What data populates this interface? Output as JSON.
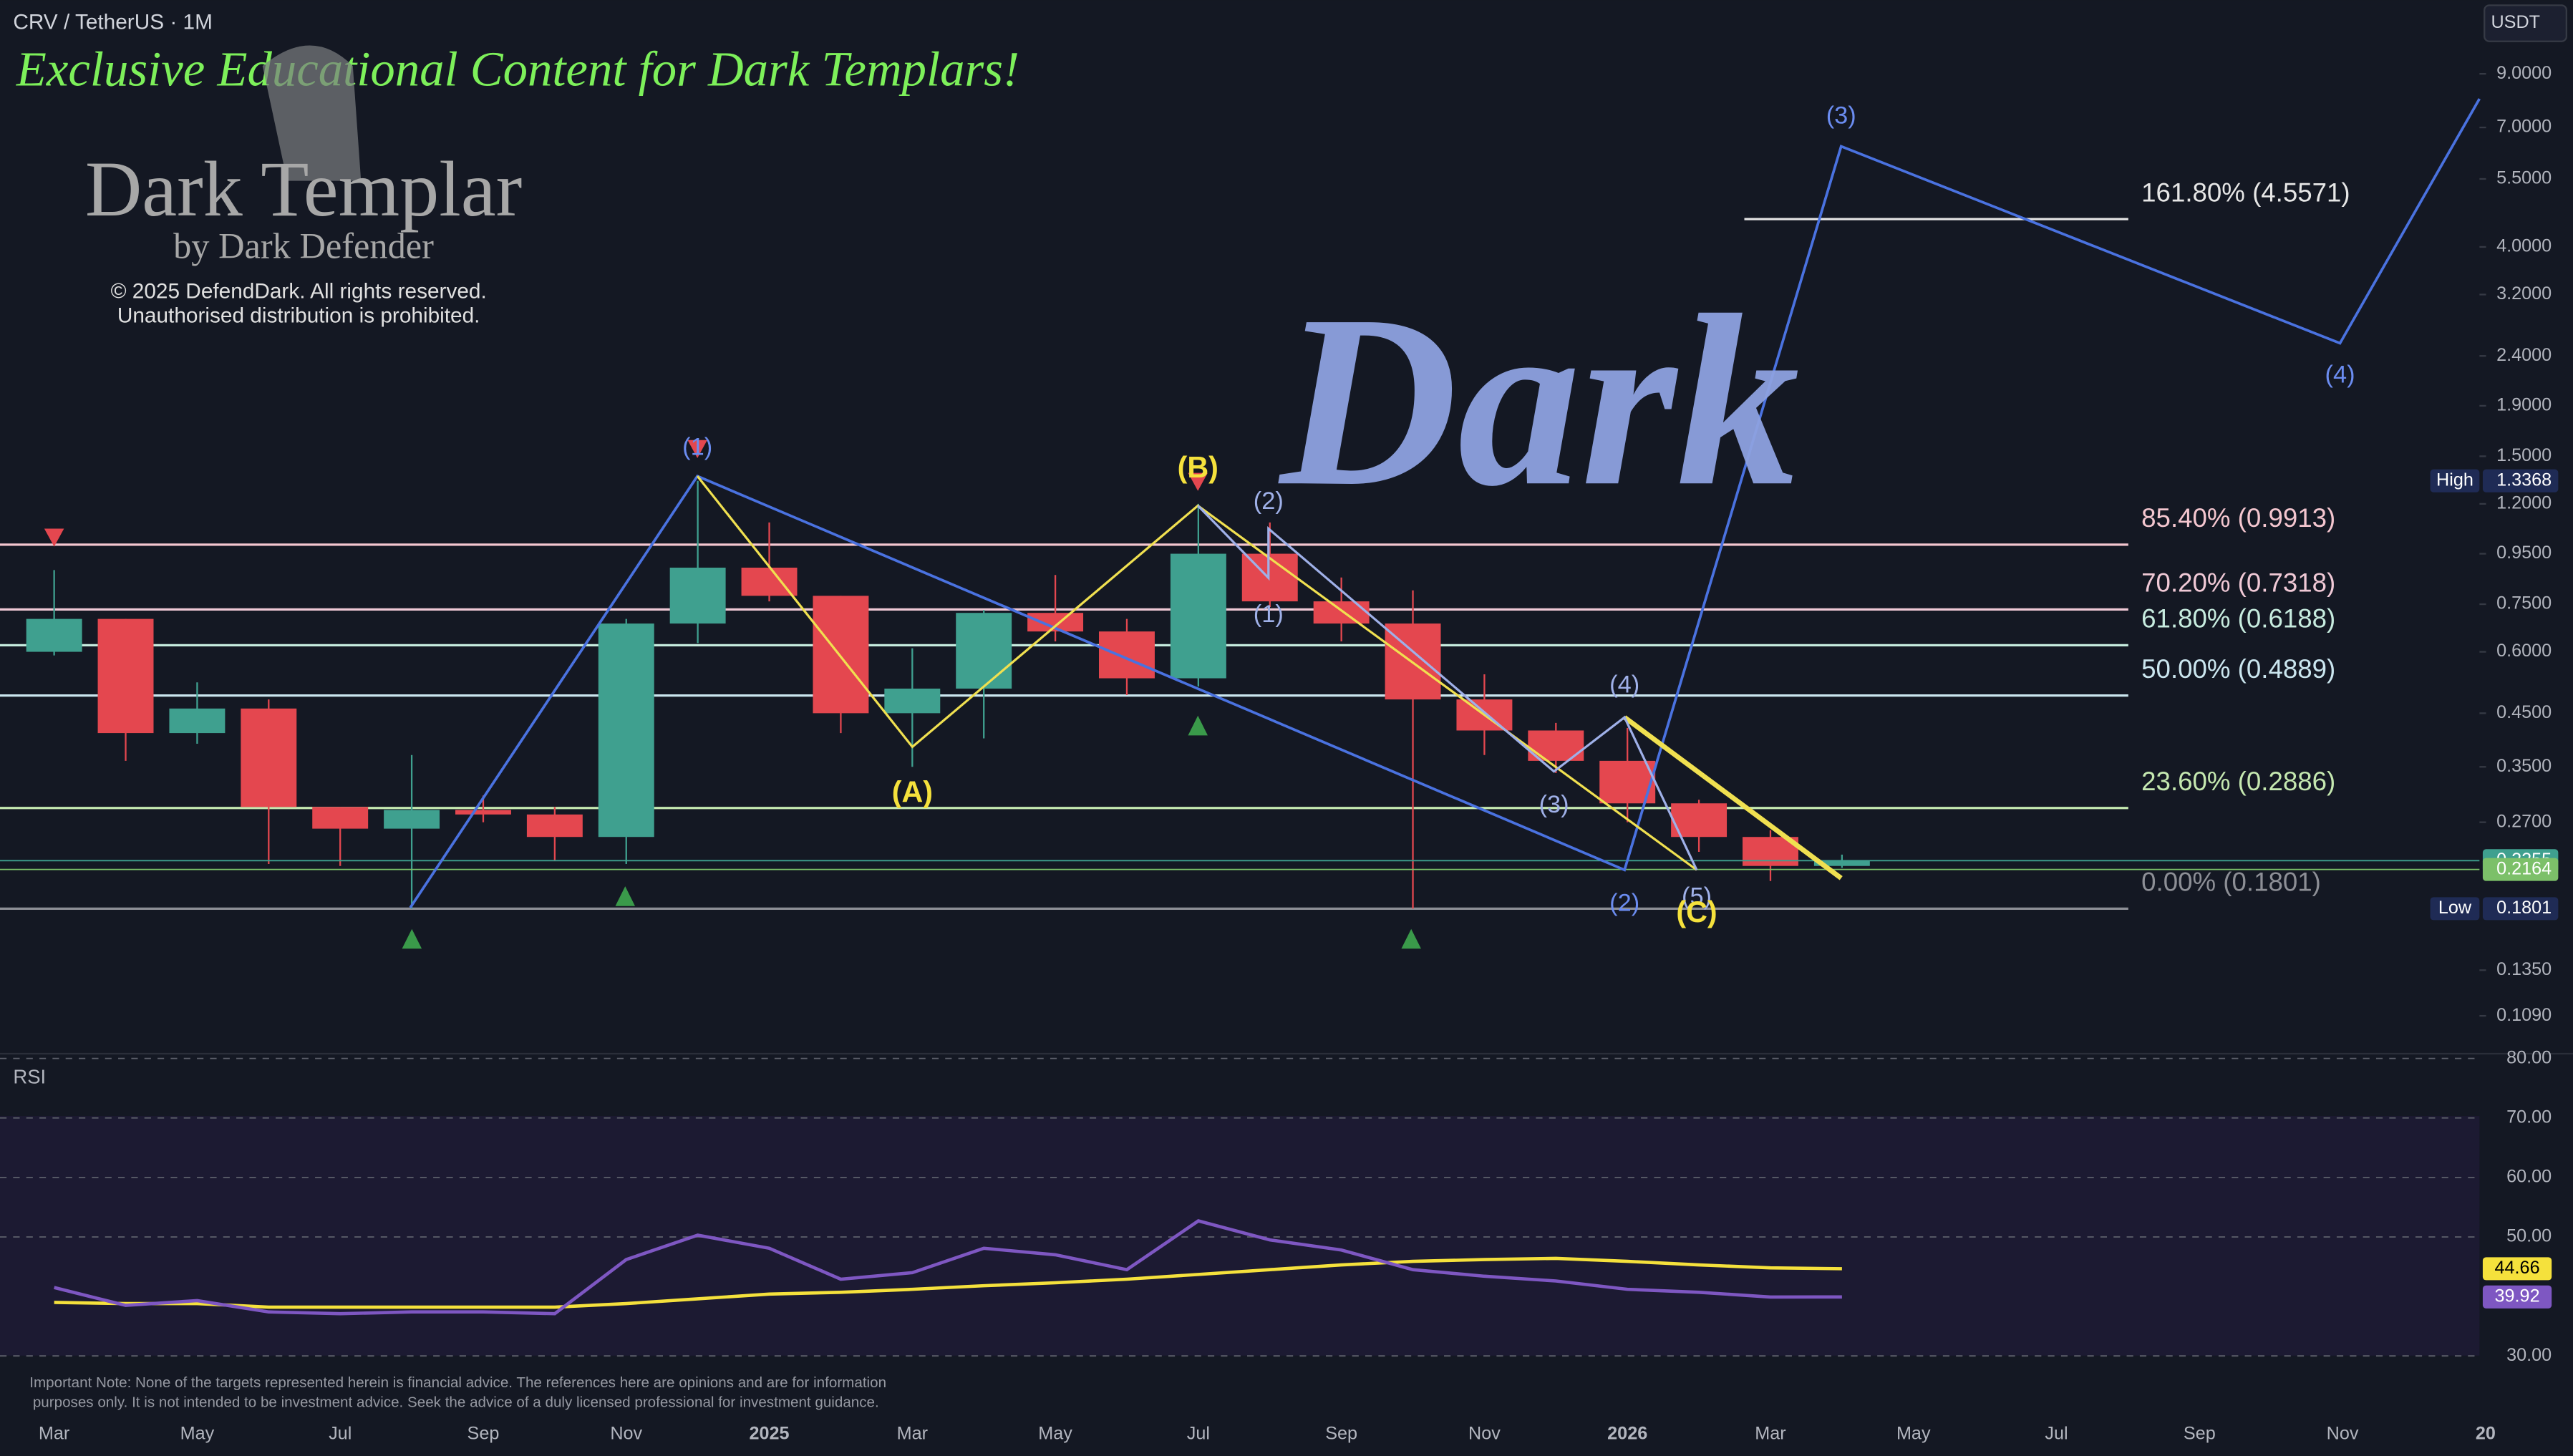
{
  "header": {
    "symbol": "CRV / TetherUS · 1M",
    "currency": "USDT"
  },
  "watermark": {
    "banner": "Exclusive Educational Content for Dark Templars!",
    "brand": "Dark Templar",
    "byline": "by Dark Defender",
    "copyright": "© 2025 DefendDark. All rights reserved.",
    "notice": "Unauthorised distribution is prohibited.",
    "big_text": "Dark"
  },
  "disclaimer": [
    "Important Note: None of the targets represented herein is financial advice. The references here are opinions and are for information",
    "purposes only. It is not intended to be investment advice. Seek the advice of a duly licensed professional for investment guidance."
  ],
  "wave_labels": [
    "(1)",
    "(A)",
    "(B)",
    "(2)",
    "(1)",
    "(3)",
    "(4)",
    "(5)",
    "(C)",
    "(2)",
    "(3)",
    "(4)"
  ],
  "chart_data": [
    {
      "type": "candlestick",
      "log_scale": true,
      "categories": [
        "Mar",
        null,
        "May",
        null,
        "Jul",
        null,
        "Sep",
        null,
        "Nov",
        null,
        "2025",
        null,
        "Mar",
        null,
        "May",
        null,
        "Jul",
        null,
        "Sep",
        null,
        "Nov",
        null,
        "2026",
        null,
        "Mar",
        null,
        "May",
        null,
        "Jul",
        null,
        "Sep",
        null,
        "Nov",
        null,
        "20"
      ],
      "series": [
        {
          "up_color": "#3fa08f",
          "down_color": "#e4474f",
          "open": [
            0.6,
            0.7,
            0.41,
            0.46,
            0.29,
            0.262,
            0.286,
            0.28,
            0.252,
            0.685,
            0.89,
            0.78,
            0.45,
            0.505,
            0.72,
            0.66,
            0.53,
            0.95,
            0.76,
            0.685,
            0.48,
            0.415,
            0.36,
            0.295,
            0.252,
            0.22,
            null,
            null,
            null,
            null,
            null,
            null,
            null,
            null,
            null
          ],
          "high": [
            0.88,
            0.7,
            0.52,
            0.48,
            0.29,
            0.37,
            0.306,
            0.29,
            0.7,
            1.3368,
            1.1,
            0.78,
            0.61,
            0.73,
            0.86,
            0.7,
            1.2,
            1.1,
            0.85,
            0.8,
            0.54,
            0.43,
            0.42,
            0.3,
            0.26,
            0.232,
            null,
            null,
            null,
            null,
            null,
            null,
            null,
            null,
            null
          ],
          "low": [
            0.59,
            0.36,
            0.39,
            0.222,
            0.22,
            0.18,
            0.27,
            0.225,
            0.222,
            0.625,
            0.76,
            0.41,
            0.35,
            0.4,
            0.63,
            0.49,
            0.51,
            0.74,
            0.63,
            0.1801,
            0.37,
            0.34,
            0.27,
            0.235,
            0.205,
            0.218,
            null,
            null,
            null,
            null,
            null,
            null,
            null,
            null,
            null
          ],
          "close": [
            0.7,
            0.41,
            0.46,
            0.29,
            0.262,
            0.286,
            0.28,
            0.252,
            0.685,
            0.89,
            0.78,
            0.45,
            0.505,
            0.72,
            0.66,
            0.53,
            0.95,
            0.76,
            0.685,
            0.48,
            0.415,
            0.36,
            0.295,
            0.252,
            0.22,
            0.2255,
            null,
            null,
            null,
            null,
            null,
            null,
            null,
            null,
            null
          ]
        }
      ],
      "ylim": [
        0.0927,
        12.7
      ],
      "yticks": [
        {
          "value": 9,
          "label": "9.0000"
        },
        {
          "value": 7,
          "label": "7.0000"
        },
        {
          "value": 5.5,
          "label": "5.5000"
        },
        {
          "value": 4,
          "label": "4.0000"
        },
        {
          "value": 3.2,
          "label": "3.2000"
        },
        {
          "value": 2.4,
          "label": "2.4000"
        },
        {
          "value": 1.9,
          "label": "1.9000"
        },
        {
          "value": 1.5,
          "label": "1.5000"
        },
        {
          "value": 1.2,
          "label": "1.2000"
        },
        {
          "value": 0.95,
          "label": "0.9500"
        },
        {
          "value": 0.75,
          "label": "0.7500"
        },
        {
          "value": 0.6,
          "label": "0.6000"
        },
        {
          "value": 0.45,
          "label": "0.4500"
        },
        {
          "value": 0.35,
          "label": "0.3500"
        },
        {
          "value": 0.27,
          "label": "0.2700"
        },
        {
          "value": 0.135,
          "label": "0.1350"
        },
        {
          "value": 0.109,
          "label": "0.1090"
        }
      ],
      "fib_levels": [
        {
          "value": 4.5571,
          "label": "161.80% (4.5571)",
          "color": "#e6e6e6"
        },
        {
          "value": 0.9913,
          "label": "85.40% (0.9913)",
          "color": "#f4c6cf"
        },
        {
          "value": 0.7318,
          "label": "70.20% (0.7318)",
          "color": "#f0c9d6"
        },
        {
          "value": 0.6188,
          "label": "61.80% (0.6188)",
          "color": "#c7ecdf"
        },
        {
          "value": 0.4889,
          "label": "50.00% (0.4889)",
          "color": "#cbe6ef"
        },
        {
          "value": 0.2886,
          "label": "23.60% (0.2886)",
          "color": "#c5e8b0"
        },
        {
          "value": 0.1801,
          "label": "0.00% (0.1801)",
          "color": "#8d8f96"
        }
      ],
      "price_labels": [
        {
          "name": "High",
          "value": 1.3368,
          "color": "#1f2b55"
        },
        {
          "value": 0.2255,
          "color": "#3fa08f"
        },
        {
          "value": 0.2164,
          "color": "#7cc069"
        },
        {
          "name": "Low",
          "value": 0.1801,
          "color": "#1f2b55"
        }
      ]
    },
    {
      "type": "line",
      "title": "RSI",
      "series": [
        {
          "name": "RSI",
          "color": "#7e57c2",
          "values": [
            41.5,
            38.5,
            39.3,
            37.4,
            37.1,
            37.4,
            37.4,
            37.1,
            46.2,
            50.3,
            48.1,
            42.9,
            44.0,
            48.1,
            47.0,
            44.5,
            52.7,
            49.5,
            47.8,
            44.5,
            43.4,
            42.6,
            41.2,
            40.7,
            39.9,
            39.92,
            null,
            null,
            null,
            null,
            null,
            null,
            null,
            null,
            null
          ]
        },
        {
          "name": "RSI-based MA",
          "color": "#f5e13c",
          "values": [
            39.0,
            38.8,
            38.8,
            38.2,
            38.2,
            38.2,
            38.2,
            38.2,
            38.8,
            39.6,
            40.4,
            40.7,
            41.2,
            41.8,
            42.3,
            42.9,
            43.7,
            44.5,
            45.3,
            45.9,
            46.2,
            46.4,
            45.9,
            45.3,
            44.8,
            44.66,
            null,
            null,
            null,
            null,
            null,
            null,
            null,
            null,
            null
          ]
        }
      ],
      "ylim": [
        26.2,
        80.8
      ],
      "yticks": [
        {
          "value": 80,
          "label": "80.00"
        },
        {
          "value": 70,
          "label": "70.00"
        },
        {
          "value": 60,
          "label": "60.00"
        },
        {
          "value": 50,
          "label": "50.00"
        },
        {
          "value": 30,
          "label": "30.00"
        }
      ]
    }
  ]
}
